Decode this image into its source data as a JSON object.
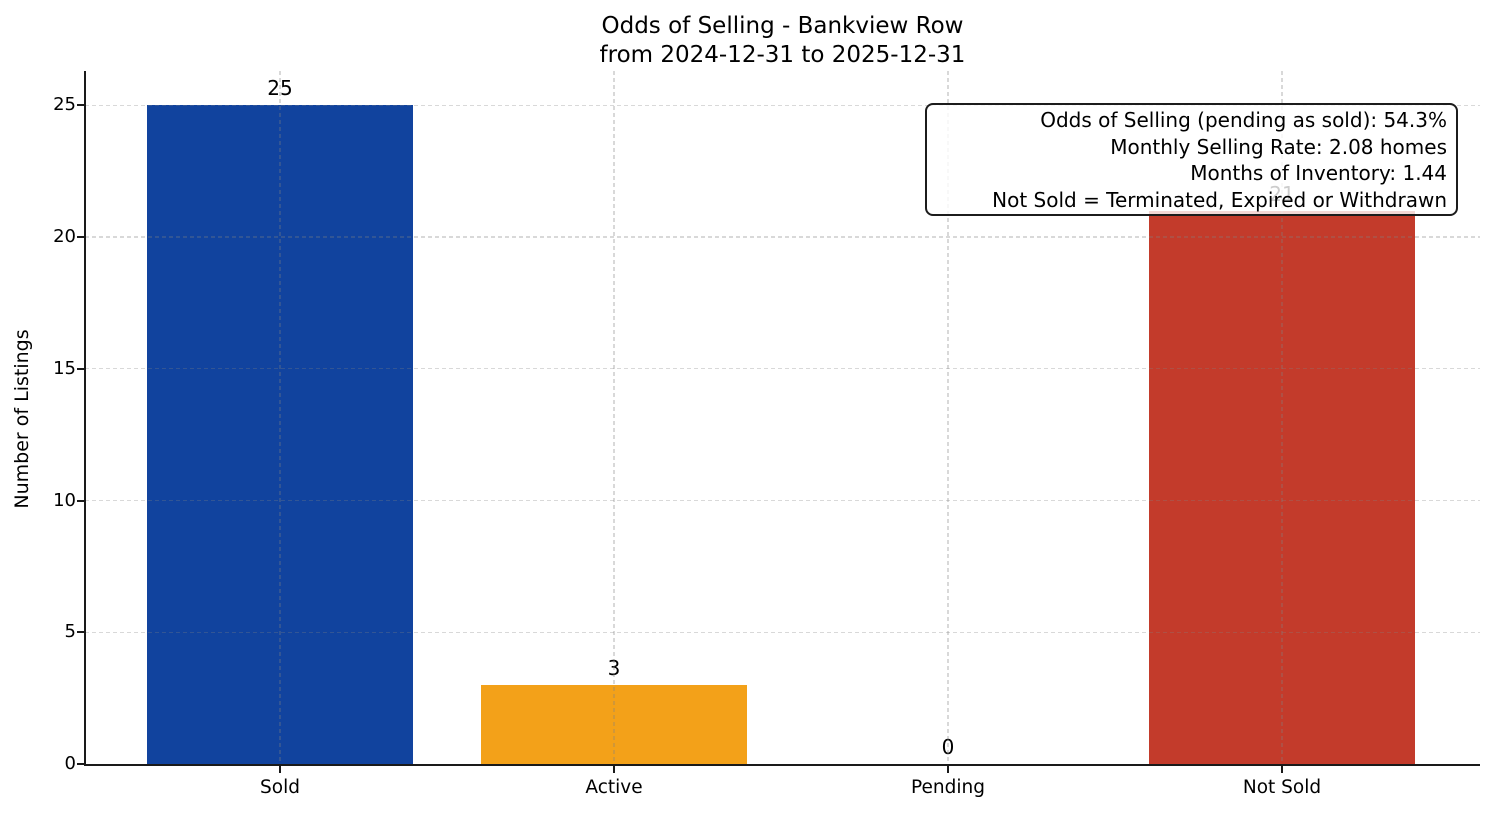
{
  "chart_data": {
    "type": "bar",
    "title": "Odds of Selling - Bankview Row",
    "subtitle": "from 2024-12-31 to 2025-12-31",
    "ylabel": "Number of Listings",
    "xlabel": "",
    "categories": [
      "Sold",
      "Active",
      "Pending",
      "Not Sold"
    ],
    "values": [
      25,
      3,
      0,
      21
    ],
    "value_labels": [
      "25",
      "3",
      "0",
      "21"
    ],
    "bar_colors": [
      "#11439e",
      "#f3a119",
      null,
      "#c33b2b"
    ],
    "yticks": [
      0,
      5,
      10,
      15,
      20,
      25
    ],
    "ylim": [
      0,
      26.3
    ],
    "grid": "dashed, both axes, drawn over bars",
    "legend_position": "none",
    "axis_color": "#1a1a1a",
    "grid_color": "#d9d9d9",
    "background": "#ffffff",
    "annotation": {
      "position": "top-right",
      "lines": [
        "Odds of Selling (pending as sold): 54.3%",
        "Monthly Selling Rate: 2.08 homes",
        "Months of Inventory: 1.44",
        "Not Sold = Terminated, Expired or Withdrawn"
      ]
    }
  }
}
